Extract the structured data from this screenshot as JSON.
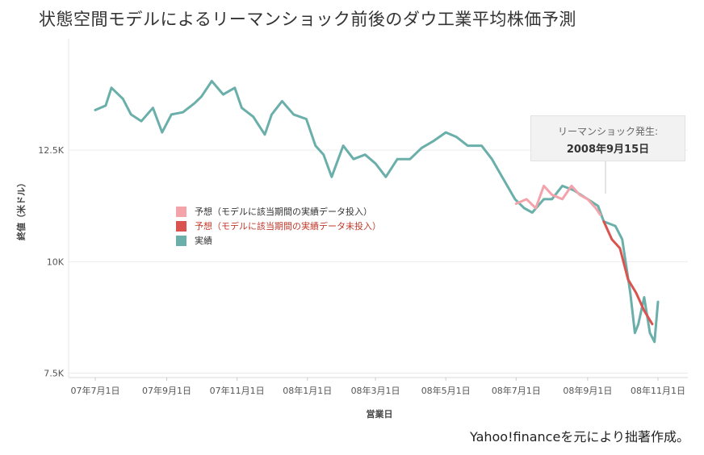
{
  "title": "状態空間モデルによるリーマンショック前後のダウ工業平均株価予測",
  "source_note": "Yahoo!financeを元により拙著作成。",
  "callout": {
    "line1": "リーマンショック発生:",
    "line2": "2008年9月15日"
  },
  "colors": {
    "actual": "#6aafa9",
    "forecast_in": "#f4a3ab",
    "forecast_out": "#d9534f"
  },
  "legend": [
    {
      "label": "予想（モデルに該当期間の実績データ投入）",
      "color": "#f4a3ab",
      "text_color": "#333333"
    },
    {
      "label": "予想（モデルに該当期間の実績データ未投入）",
      "color": "#d9534f",
      "text_color": "#c0392b"
    },
    {
      "label": "実績",
      "color": "#6aafa9",
      "text_color": "#333333"
    }
  ],
  "chart_data": {
    "type": "line",
    "title": "状態空間モデルによるリーマンショック前後のダウ工業平均株価予測",
    "xlabel": "営業日",
    "ylabel": "終値（米ドル）",
    "x_ticks": [
      "07年7月1日",
      "07年9月1日",
      "07年11月1日",
      "08年1月1日",
      "08年3月1日",
      "08年5月1日",
      "08年7月1日",
      "08年9月1日",
      "08年11月1日"
    ],
    "y_ticks": [
      {
        "value": 7500,
        "label": "7.5K"
      },
      {
        "value": 10000,
        "label": "10K"
      },
      {
        "value": 12500,
        "label": "12.5K"
      }
    ],
    "ylim": [
      7400,
      15000
    ],
    "grid": true,
    "legend_position": "center-left",
    "series": [
      {
        "name": "実績",
        "color": "#6aafa9",
        "points": [
          [
            "07年7月1日",
            13400
          ],
          [
            "07年7月10日",
            13500
          ],
          [
            "07年7月15日",
            13900
          ],
          [
            "07年7月25日",
            13650
          ],
          [
            "07年8月1日",
            13300
          ],
          [
            "07年8月10日",
            13150
          ],
          [
            "07年8月20日",
            13450
          ],
          [
            "07年8月28日",
            12900
          ],
          [
            "07年9月5日",
            13300
          ],
          [
            "07年9月15日",
            13350
          ],
          [
            "07年9月25日",
            13550
          ],
          [
            "07年10月1日",
            13700
          ],
          [
            "07年10月10日",
            14050
          ],
          [
            "07年10月20日",
            13750
          ],
          [
            "07年10月30日",
            13900
          ],
          [
            "07年11月5日",
            13450
          ],
          [
            "07年11月15日",
            13250
          ],
          [
            "07年11月25日",
            12850
          ],
          [
            "07年12月1日",
            13300
          ],
          [
            "07年12月10日",
            13600
          ],
          [
            "07年12月20日",
            13300
          ],
          [
            "07年12月31日",
            13200
          ],
          [
            "08年1月8日",
            12600
          ],
          [
            "08年1月15日",
            12400
          ],
          [
            "08年1月22日",
            11900
          ],
          [
            "08年2月1日",
            12600
          ],
          [
            "08年2月10日",
            12300
          ],
          [
            "08年2月20日",
            12400
          ],
          [
            "08年3月1日",
            12200
          ],
          [
            "08年3月10日",
            11900
          ],
          [
            "08年3月20日",
            12300
          ],
          [
            "08年3月31日",
            12300
          ],
          [
            "08年4月10日",
            12550
          ],
          [
            "08年4月20日",
            12700
          ],
          [
            "08年5月1日",
            12900
          ],
          [
            "08年5月10日",
            12800
          ],
          [
            "08年5月20日",
            12600
          ],
          [
            "08年6月1日",
            12600
          ],
          [
            "08年6月10日",
            12300
          ],
          [
            "08年6月20日",
            11850
          ],
          [
            "08年6月30日",
            11400
          ],
          [
            "08年7月8日",
            11200
          ],
          [
            "08年7月15日",
            11100
          ],
          [
            "08年7月25日",
            11400
          ],
          [
            "08年8月1日",
            11400
          ],
          [
            "08年8月10日",
            11700
          ],
          [
            "08年8月20日",
            11600
          ],
          [
            "08年9月1日",
            11400
          ],
          [
            "08年9月10日",
            11250
          ],
          [
            "08年9月15日",
            10900
          ],
          [
            "08年9月25日",
            10800
          ],
          [
            "08年10月1日",
            10500
          ],
          [
            "08年10月8日",
            9300
          ],
          [
            "08年10月12日",
            8400
          ],
          [
            "08年10月15日",
            8600
          ],
          [
            "08年10月20日",
            9200
          ],
          [
            "08年10月25日",
            8400
          ],
          [
            "08年10月29日",
            8200
          ],
          [
            "08年11月1日",
            9100
          ]
        ]
      },
      {
        "name": "予想（モデルに該当期間の実績データ投入）",
        "color": "#f4a3ab",
        "points": [
          [
            "08年7月1日",
            11300
          ],
          [
            "08年7月10日",
            11400
          ],
          [
            "08年7月18日",
            11200
          ],
          [
            "08年7月25日",
            11700
          ],
          [
            "08年8月1日",
            11500
          ],
          [
            "08年8月10日",
            11400
          ],
          [
            "08年8月18日",
            11700
          ],
          [
            "08年8月25日",
            11500
          ],
          [
            "08年9月1日",
            11400
          ],
          [
            "08年9月8日",
            11200
          ],
          [
            "08年9月12日",
            11050
          ]
        ]
      },
      {
        "name": "予想（モデルに該当期間の実績データ未投入）",
        "color": "#d9534f",
        "points": [
          [
            "08年9月15日",
            10900
          ],
          [
            "08年9月22日",
            10500
          ],
          [
            "08年9月29日",
            10300
          ],
          [
            "08年10月6日",
            9600
          ],
          [
            "08年10月13日",
            9300
          ],
          [
            "08年10月20日",
            8900
          ],
          [
            "08年10月27日",
            8600
          ]
        ]
      }
    ]
  }
}
